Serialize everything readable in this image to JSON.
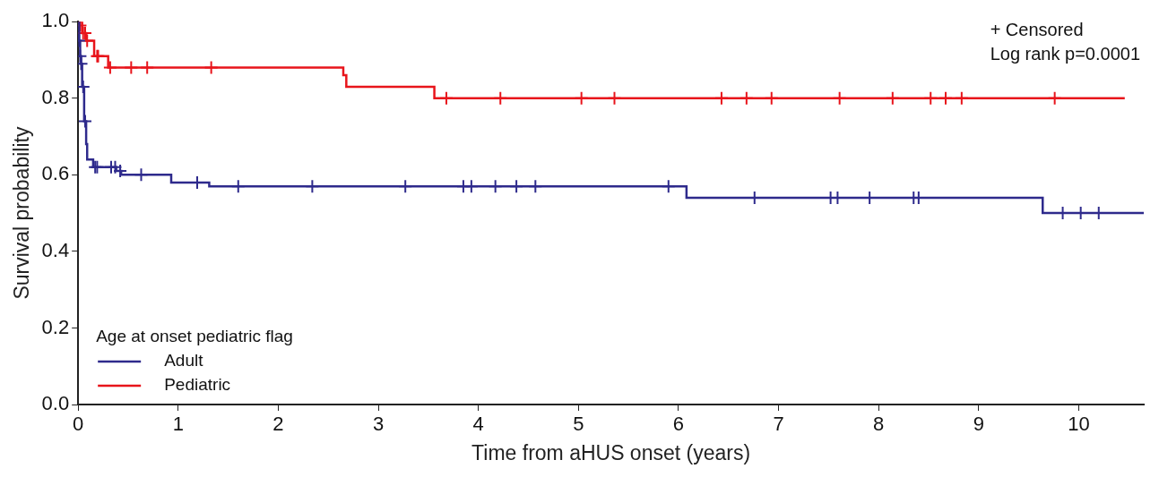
{
  "chart_data": {
    "type": "step",
    "xlabel": "Time from aHUS onset (years)",
    "ylabel": "Survival probability",
    "xlim": [
      0,
      10.65
    ],
    "xticks": [
      0,
      1,
      2,
      3,
      4,
      5,
      6,
      7,
      8,
      9,
      10
    ],
    "ylim": [
      0,
      1
    ],
    "yticks": [
      {
        "value": 0,
        "label": "0.0"
      },
      {
        "value": 0.2,
        "label": "0.2"
      },
      {
        "value": 0.4,
        "label": "0.4"
      },
      {
        "value": 0.6,
        "label": "0.6"
      },
      {
        "value": 0.8,
        "label": "0.8"
      },
      {
        "value": 1,
        "label": "1.0"
      }
    ],
    "grid": false,
    "legend": "bottom left",
    "legend_title": "Age at onset pediatric flag",
    "annotations": [
      "+ Censored",
      "Log rank p=0.0001"
    ],
    "series": [
      {
        "name": "Adult",
        "color": "#2e2a8c",
        "x": [
          0,
          0.01,
          0.02,
          0.03,
          0.04,
          0.06,
          0.08,
          0.09,
          0.15,
          0.38,
          0.43,
          0.93,
          1.31,
          6.08,
          9.64,
          10.65
        ],
        "values": [
          1.0,
          0.95,
          0.91,
          0.89,
          0.83,
          0.74,
          0.68,
          0.64,
          0.62,
          0.61,
          0.6,
          0.58,
          0.57,
          0.54,
          0.5,
          0.5
        ]
      },
      {
        "name": "Pediatric",
        "color": "#e8141b",
        "x": [
          0,
          0.04,
          0.08,
          0.16,
          0.3,
          2.65,
          2.68,
          3.56,
          10.46
        ],
        "values": [
          1.0,
          0.97,
          0.95,
          0.91,
          0.88,
          0.86,
          0.83,
          0.8,
          0.8
        ]
      },
      {
        "type": "scatter",
        "marker": "cross",
        "color": "#2e2a8c",
        "x": [
          0.01,
          0.02,
          0.03,
          0.05,
          0.07,
          0.17,
          0.19,
          0.33,
          0.37,
          0.42,
          0.63,
          1.19,
          1.6,
          2.34,
          3.27,
          3.85,
          3.93,
          4.17,
          4.38,
          4.57,
          5.9,
          6.76,
          7.52,
          7.59,
          7.91,
          8.35,
          8.4,
          9.84,
          10.02,
          10.2
        ],
        "values": [
          0.95,
          0.91,
          0.89,
          0.83,
          0.74,
          0.62,
          0.62,
          0.62,
          0.62,
          0.61,
          0.6,
          0.58,
          0.57,
          0.57,
          0.57,
          0.57,
          0.57,
          0.57,
          0.57,
          0.57,
          0.57,
          0.54,
          0.54,
          0.54,
          0.54,
          0.54,
          0.54,
          0.5,
          0.5,
          0.5
        ]
      },
      {
        "type": "scatter",
        "marker": "cross",
        "color": "#e8141b",
        "x": [
          0.02,
          0.05,
          0.07,
          0.09,
          0.19,
          0.2,
          0.32,
          0.53,
          0.69,
          1.33,
          3.68,
          4.22,
          5.03,
          5.36,
          6.43,
          6.68,
          6.93,
          7.61,
          8.14,
          8.52,
          8.67,
          8.83,
          9.76
        ],
        "values": [
          0.99,
          0.97,
          0.97,
          0.95,
          0.91,
          0.91,
          0.88,
          0.88,
          0.88,
          0.88,
          0.8,
          0.8,
          0.8,
          0.8,
          0.8,
          0.8,
          0.8,
          0.8,
          0.8,
          0.8,
          0.8,
          0.8,
          0.8
        ]
      }
    ]
  }
}
